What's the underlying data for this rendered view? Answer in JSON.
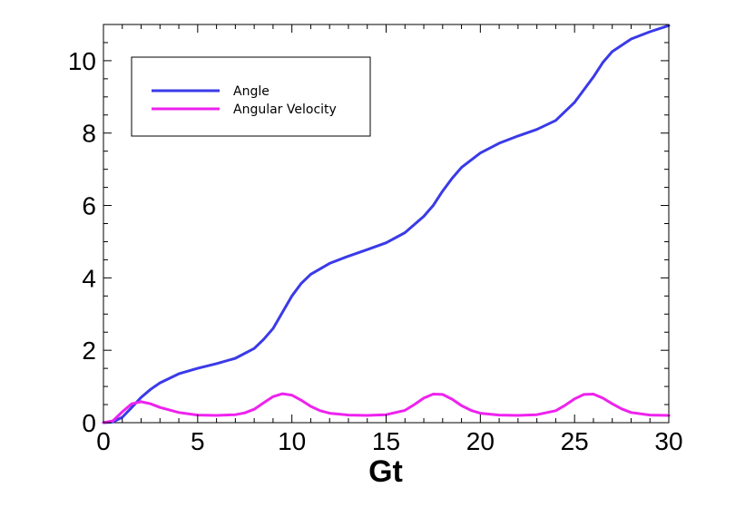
{
  "chart_data": {
    "type": "line",
    "title": "",
    "xlabel": "Gt",
    "ylabel": "",
    "xlim": [
      0,
      30
    ],
    "ylim": [
      0,
      11
    ],
    "xticks": [
      "0",
      "5",
      "10",
      "15",
      "20",
      "25",
      "30"
    ],
    "yticks": [
      "0",
      "2",
      "4",
      "6",
      "8",
      "10"
    ],
    "grid": false,
    "legend_position": "top-left",
    "series": [
      {
        "name": "Angle",
        "color": "#3a3ae8",
        "x": [
          0,
          0.5,
          1,
          1.5,
          2,
          2.5,
          3,
          4,
          5,
          6,
          7,
          8,
          8.5,
          9,
          9.5,
          10,
          10.5,
          11,
          12,
          13,
          14,
          15,
          16,
          17,
          17.5,
          18,
          18.5,
          19,
          20,
          21,
          22,
          23,
          24,
          25,
          26,
          26.5,
          27,
          28,
          29,
          30
        ],
        "y": [
          0,
          0.02,
          0.15,
          0.42,
          0.7,
          0.92,
          1.1,
          1.35,
          1.5,
          1.63,
          1.78,
          2.05,
          2.3,
          2.6,
          3.05,
          3.5,
          3.85,
          4.1,
          4.4,
          4.6,
          4.78,
          4.97,
          5.25,
          5.7,
          6.0,
          6.4,
          6.75,
          7.05,
          7.45,
          7.72,
          7.92,
          8.1,
          8.35,
          8.85,
          9.55,
          9.95,
          10.25,
          10.6,
          10.8,
          10.97
        ]
      },
      {
        "name": "Angular Velocity",
        "color": "#ee22ee",
        "x": [
          0,
          0.5,
          1,
          1.5,
          2,
          2.5,
          3,
          4,
          5,
          6,
          7,
          7.5,
          8,
          8.5,
          9,
          9.5,
          10,
          10.5,
          11,
          11.5,
          12,
          13,
          14,
          15,
          16,
          16.5,
          17,
          17.5,
          18,
          18.5,
          19,
          19.5,
          20,
          21,
          22,
          23,
          24,
          24.5,
          25,
          25.5,
          26,
          26.5,
          27,
          27.5,
          28,
          29,
          30
        ],
        "y": [
          0,
          0.05,
          0.3,
          0.52,
          0.58,
          0.52,
          0.42,
          0.28,
          0.21,
          0.2,
          0.22,
          0.27,
          0.37,
          0.55,
          0.72,
          0.8,
          0.76,
          0.62,
          0.45,
          0.33,
          0.26,
          0.21,
          0.2,
          0.22,
          0.34,
          0.5,
          0.68,
          0.79,
          0.78,
          0.65,
          0.47,
          0.34,
          0.26,
          0.21,
          0.2,
          0.22,
          0.33,
          0.48,
          0.66,
          0.78,
          0.79,
          0.68,
          0.52,
          0.38,
          0.28,
          0.21,
          0.2
        ]
      }
    ]
  }
}
